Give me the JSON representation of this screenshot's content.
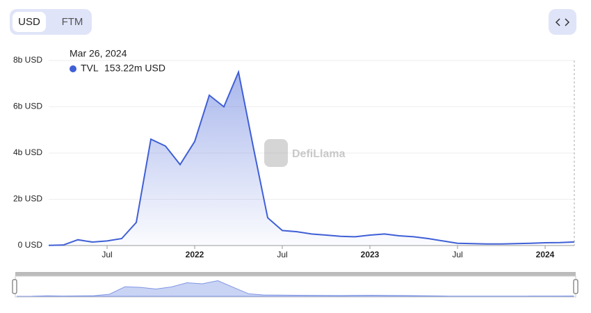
{
  "controls": {
    "currencies": [
      "USD",
      "FTM"
    ],
    "selected": 0
  },
  "chart_data": {
    "type": "area",
    "x": [
      "2021-03",
      "2021-04",
      "2021-05",
      "2021-06",
      "2021-07",
      "2021-08",
      "2021-09",
      "2021-10",
      "2021-11",
      "2021-12",
      "2022-01",
      "2022-02",
      "2022-03",
      "2022-04",
      "2022-05",
      "2022-06",
      "2022-07",
      "2022-08",
      "2022-09",
      "2022-10",
      "2022-11",
      "2022-12",
      "2023-01",
      "2023-02",
      "2023-03",
      "2023-04",
      "2023-05",
      "2023-06",
      "2023-07",
      "2023-08",
      "2023-09",
      "2023-10",
      "2023-11",
      "2023-12",
      "2024-01",
      "2024-02",
      "2024-03"
    ],
    "series": [
      {
        "name": "TVL",
        "color": "#3f5fd6",
        "values": [
          10000000,
          20000000,
          250000000,
          150000000,
          200000000,
          300000000,
          1000000000,
          4600000000,
          4300000000,
          3500000000,
          4500000000,
          6500000000,
          6000000000,
          7500000000,
          4300000000,
          1200000000,
          650000000,
          600000000,
          500000000,
          450000000,
          400000000,
          380000000,
          450000000,
          500000000,
          420000000,
          380000000,
          300000000,
          200000000,
          100000000,
          80000000,
          70000000,
          70000000,
          80000000,
          100000000,
          120000000,
          130000000,
          153220000
        ]
      }
    ],
    "xlim": [
      "2021-03",
      "2024-03"
    ],
    "xticks": [
      {
        "value": "2021-07",
        "label": "Jul"
      },
      {
        "value": "2022-01",
        "label": "2022"
      },
      {
        "value": "2022-07",
        "label": "Jul"
      },
      {
        "value": "2023-01",
        "label": "2023"
      },
      {
        "value": "2023-07",
        "label": "Jul"
      },
      {
        "value": "2024-01",
        "label": "2024"
      }
    ],
    "ylim": [
      0,
      8000000000
    ],
    "yticks": [
      {
        "value": 0,
        "label": "0 USD"
      },
      {
        "value": 2000000000,
        "label": "2b USD"
      },
      {
        "value": 4000000000,
        "label": "4b USD"
      },
      {
        "value": 6000000000,
        "label": "6b USD"
      },
      {
        "value": 8000000000,
        "label": "8b USD"
      }
    ],
    "grid": true,
    "tooltip": {
      "date": "Mar 26, 2024",
      "label": "153.22m USD"
    },
    "watermark": "DefiLlama"
  }
}
